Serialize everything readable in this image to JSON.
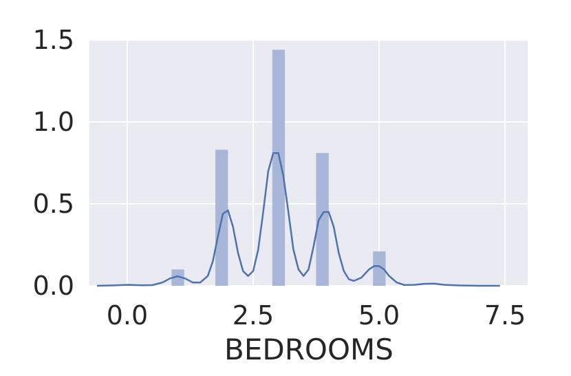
{
  "chart_data": {
    "type": "bar",
    "style": "histogram with density curve",
    "xlabel": "BEDROOMS",
    "ylabel": "",
    "title": "",
    "xlim": [
      -0.75,
      7.95
    ],
    "ylim": [
      0,
      1.5
    ],
    "x_ticks": [
      0.0,
      2.5,
      5.0,
      7.5
    ],
    "x_tick_labels": [
      "0.0",
      "2.5",
      "5.0",
      "7.5"
    ],
    "y_ticks": [
      0.0,
      0.5,
      1.0,
      1.5
    ],
    "y_tick_labels": [
      "0.0",
      "0.5",
      "1.0",
      "1.5"
    ],
    "grid": true,
    "background_color": "#eaeaf2",
    "bar_color": "#a8b6d8",
    "line_color": "#4c72b0",
    "bars": [
      {
        "x0": 0.88,
        "x1": 1.13,
        "value": 0.1
      },
      {
        "x0": 1.75,
        "x1": 2.0,
        "value": 0.83
      },
      {
        "x0": 2.88,
        "x1": 3.13,
        "value": 1.44
      },
      {
        "x0": 3.75,
        "x1": 4.0,
        "value": 0.81
      },
      {
        "x0": 4.88,
        "x1": 5.13,
        "value": 0.21
      }
    ],
    "density": {
      "x": [
        -0.6,
        -0.3,
        0.0,
        0.3,
        0.5,
        0.7,
        0.85,
        1.0,
        1.15,
        1.3,
        1.45,
        1.6,
        1.7,
        1.8,
        1.9,
        2.0,
        2.1,
        2.2,
        2.3,
        2.4,
        2.5,
        2.6,
        2.7,
        2.8,
        2.9,
        3.0,
        3.1,
        3.2,
        3.3,
        3.4,
        3.5,
        3.6,
        3.7,
        3.8,
        3.9,
        4.0,
        4.1,
        4.2,
        4.3,
        4.4,
        4.5,
        4.65,
        4.8,
        4.9,
        5.0,
        5.1,
        5.2,
        5.35,
        5.5,
        5.7,
        5.9,
        6.1,
        6.3,
        6.6,
        7.0,
        7.4
      ],
      "y": [
        0.0,
        0.002,
        0.006,
        0.003,
        0.004,
        0.02,
        0.045,
        0.058,
        0.045,
        0.02,
        0.02,
        0.06,
        0.15,
        0.3,
        0.44,
        0.46,
        0.36,
        0.2,
        0.09,
        0.06,
        0.09,
        0.22,
        0.45,
        0.7,
        0.81,
        0.81,
        0.67,
        0.45,
        0.22,
        0.1,
        0.06,
        0.1,
        0.24,
        0.4,
        0.45,
        0.45,
        0.36,
        0.2,
        0.09,
        0.04,
        0.03,
        0.05,
        0.1,
        0.12,
        0.12,
        0.1,
        0.06,
        0.02,
        0.005,
        0.006,
        0.012,
        0.013,
        0.006,
        0.002,
        0.0,
        0.0
      ]
    }
  }
}
